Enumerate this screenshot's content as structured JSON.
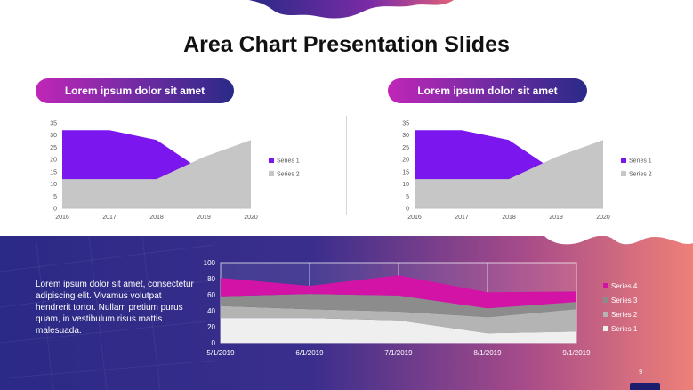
{
  "slide": {
    "title": "Area Chart Presentation Slides",
    "pill_left": "Lorem ipsum dolor sit amet",
    "pill_right": "Lorem ipsum dolor sit amet",
    "body_text": "Lorem ipsum dolor sit amet, consectetur adipiscing elit.  Vivamus volutpat hendrerit tortor. Nullam pretium purus quam, in vestibulum risus mattis malesuada.",
    "page_number": "9"
  },
  "colors": {
    "purple": "#7b16ee",
    "gray": "#c6c6c6",
    "series4": "#d313a6",
    "series3": "#8c8c8c",
    "series2": "#b4b4b4",
    "series1": "#efefef",
    "band_left": "#2b2a86",
    "band_right": "#ee8078"
  },
  "chart_data": [
    {
      "type": "area",
      "x": [
        "2016",
        "2017",
        "2018",
        "2019",
        "2020"
      ],
      "series": [
        {
          "name": "Series 1",
          "values": [
            32,
            32,
            28,
            15,
            7
          ]
        },
        {
          "name": "Series 2",
          "values": [
            12,
            12,
            12,
            21,
            28
          ]
        }
      ],
      "ylim": [
        0,
        35
      ],
      "yticks": [
        "0",
        "5",
        "10",
        "15",
        "20",
        "25",
        "30",
        "35"
      ],
      "legend": "right",
      "grid": false
    },
    {
      "type": "area",
      "x": [
        "2016",
        "2017",
        "2018",
        "2019",
        "2020"
      ],
      "series": [
        {
          "name": "Series 1",
          "values": [
            32,
            32,
            28,
            15,
            7
          ]
        },
        {
          "name": "Series 2",
          "values": [
            12,
            12,
            12,
            21,
            28
          ]
        }
      ],
      "ylim": [
        0,
        35
      ],
      "yticks": [
        "0",
        "5",
        "10",
        "15",
        "20",
        "25",
        "30",
        "35"
      ],
      "legend": "right",
      "grid": false
    },
    {
      "type": "area",
      "stacked": true,
      "x": [
        "5/1/2019",
        "6/1/2019",
        "7/1/2019",
        "8/1/2019",
        "9/1/2019"
      ],
      "series": [
        {
          "name": "Series 1",
          "values": [
            31,
            31,
            28,
            12,
            14
          ]
        },
        {
          "name": "Series 2",
          "values": [
            15,
            11,
            11,
            20,
            28
          ]
        },
        {
          "name": "Series 3",
          "values": [
            12,
            19,
            20,
            11,
            9
          ]
        },
        {
          "name": "Series 4",
          "values": [
            23,
            10,
            25,
            20,
            13
          ]
        }
      ],
      "ylim": [
        0,
        100
      ],
      "yticks": [
        "0",
        "20",
        "40",
        "60",
        "80",
        "100"
      ],
      "legend": "right",
      "grid": true
    }
  ]
}
